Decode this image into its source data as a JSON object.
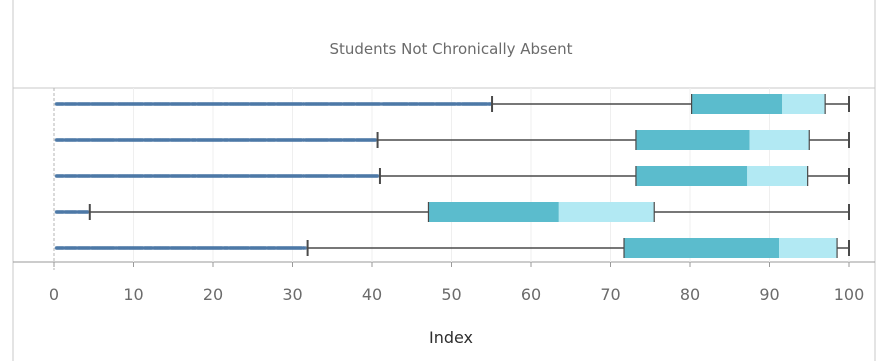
{
  "chart_data": {
    "type": "boxplot",
    "title": "Students Not Chronically Absent",
    "xlabel": "Index",
    "xlim": [
      0,
      100
    ],
    "xticks": [
      0,
      10,
      20,
      30,
      40,
      50,
      60,
      70,
      80,
      90,
      100
    ],
    "grid": true,
    "colors": {
      "lower_box": "#5bbccd",
      "upper_box": "#b2e9f3",
      "whisker": "#4a4a4a",
      "outlier": "#4e79a7",
      "zero_line": "#b5b5b5",
      "border": "#c8c8c8"
    },
    "boxes": [
      {
        "whisker_low": 55.1,
        "q1": 80.2,
        "median": 91.6,
        "q3": 97.0,
        "whisker_high": 100,
        "outliers_from": 0.3,
        "outliers_to": 55.0
      },
      {
        "whisker_low": 40.7,
        "q1": 73.2,
        "median": 87.5,
        "q3": 95.0,
        "whisker_high": 100,
        "outliers_from": 0.3,
        "outliers_to": 40.5
      },
      {
        "whisker_low": 41.0,
        "q1": 73.2,
        "median": 87.2,
        "q3": 94.8,
        "whisker_high": 100,
        "outliers_from": 0.3,
        "outliers_to": 40.8
      },
      {
        "whisker_low": 4.5,
        "q1": 47.1,
        "median": 63.5,
        "q3": 75.5,
        "whisker_high": 100,
        "outliers_from": 0.3,
        "outliers_to": 4.3
      },
      {
        "whisker_low": 31.9,
        "q1": 71.7,
        "median": 91.2,
        "q3": 98.5,
        "whisker_high": 100,
        "outliers_from": 0.3,
        "outliers_to": 31.7
      }
    ]
  }
}
